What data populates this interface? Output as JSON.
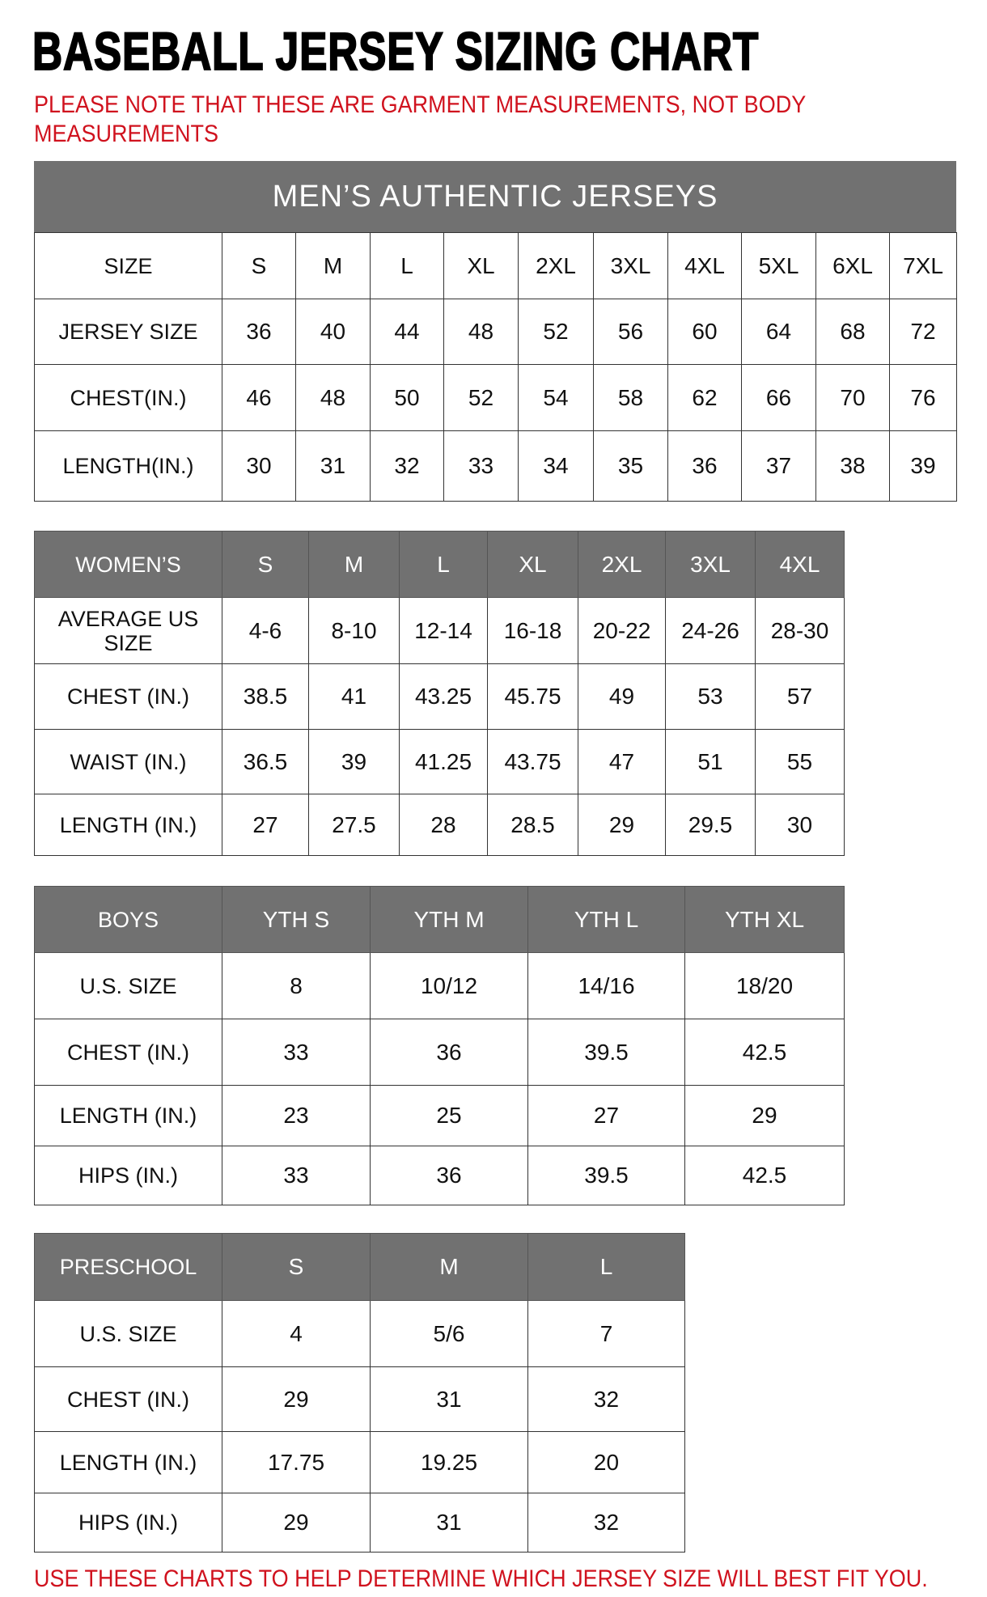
{
  "title": "BASEBALL JERSEY SIZING CHART",
  "note_line1": "PLEASE NOTE THAT THESE ARE GARMENT MEASUREMENTS, NOT BODY",
  "note_line2": "MEASUREMENTS",
  "footer": "USE THESE CHARTS TO HELP DETERMINE WHICH JERSEY SIZE WILL BEST FIT YOU.",
  "colors": {
    "header_gray": "#717171",
    "note_red": "#d0121e"
  },
  "men": {
    "heading": "MEN’S AUTHENTIC JERSEYS",
    "rows": [
      [
        "SIZE",
        "S",
        "M",
        "L",
        "XL",
        "2XL",
        "3XL",
        "4XL",
        "5XL",
        "6XL",
        "7XL"
      ],
      [
        "JERSEY SIZE",
        "36",
        "40",
        "44",
        "48",
        "52",
        "56",
        "60",
        "64",
        "68",
        "72"
      ],
      [
        "CHEST(IN.)",
        "46",
        "48",
        "50",
        "52",
        "54",
        "58",
        "62",
        "66",
        "70",
        "76"
      ],
      [
        "LENGTH(IN.)",
        "30",
        "31",
        "32",
        "33",
        "34",
        "35",
        "36",
        "37",
        "38",
        "39"
      ]
    ]
  },
  "women": {
    "rows": [
      [
        "WOMEN’S",
        "S",
        "M",
        "L",
        "XL",
        "2XL",
        "3XL",
        "4XL"
      ],
      [
        "AVERAGE US SIZE",
        "4-6",
        "8-10",
        "12-14",
        "16-18",
        "20-22",
        "24-26",
        "28-30"
      ],
      [
        "CHEST (IN.)",
        "38.5",
        "41",
        "43.25",
        "45.75",
        "49",
        "53",
        "57"
      ],
      [
        "WAIST (IN.)",
        "36.5",
        "39",
        "41.25",
        "43.75",
        "47",
        "51",
        "55"
      ],
      [
        "LENGTH (IN.)",
        "27",
        "27.5",
        "28",
        "28.5",
        "29",
        "29.5",
        "30"
      ]
    ]
  },
  "boys": {
    "rows": [
      [
        "BOYS",
        "YTH S",
        "YTH M",
        "YTH L",
        "YTH XL"
      ],
      [
        "U.S. SIZE",
        "8",
        "10/12",
        "14/16",
        "18/20"
      ],
      [
        "CHEST (IN.)",
        "33",
        "36",
        "39.5",
        "42.5"
      ],
      [
        "LENGTH (IN.)",
        "23",
        "25",
        "27",
        "29"
      ],
      [
        "HIPS (IN.)",
        "33",
        "36",
        "39.5",
        "42.5"
      ]
    ]
  },
  "preschool": {
    "rows": [
      [
        "PRESCHOOL",
        "S",
        "M",
        "L"
      ],
      [
        "U.S. SIZE",
        "4",
        "5/6",
        "7"
      ],
      [
        "CHEST (IN.)",
        "29",
        "31",
        "32"
      ],
      [
        "LENGTH (IN.)",
        "17.75",
        "19.25",
        "20"
      ],
      [
        "HIPS (IN.)",
        "29",
        "31",
        "32"
      ]
    ]
  }
}
